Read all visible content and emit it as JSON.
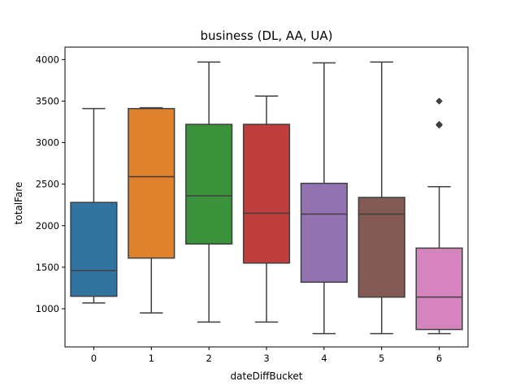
{
  "chart_data": {
    "type": "box",
    "title": "business (DL, AA, UA)",
    "xlabel": "dateDiffBucket",
    "ylabel": "totalFare",
    "ylim": [
      540,
      4150
    ],
    "yticks": [
      1000,
      1500,
      2000,
      2500,
      3000,
      3500,
      4000
    ],
    "categories": [
      "0",
      "1",
      "2",
      "3",
      "4",
      "5",
      "6"
    ],
    "colors": [
      "#3274a1",
      "#e1812c",
      "#3a923a",
      "#c03d3e",
      "#9372b2",
      "#845b53",
      "#d684bd"
    ],
    "boxes": [
      {
        "category": "0",
        "whisker_low": 1070,
        "q1": 1150,
        "median": 1460,
        "q3": 2280,
        "whisker_high": 3410,
        "outliers": []
      },
      {
        "category": "1",
        "whisker_low": 950,
        "q1": 1610,
        "median": 2590,
        "q3": 3410,
        "whisker_high": 3420,
        "outliers": []
      },
      {
        "category": "2",
        "whisker_low": 840,
        "q1": 1780,
        "median": 2360,
        "q3": 3220,
        "whisker_high": 3970,
        "outliers": []
      },
      {
        "category": "3",
        "whisker_low": 840,
        "q1": 1550,
        "median": 2150,
        "q3": 3220,
        "whisker_high": 3560,
        "outliers": []
      },
      {
        "category": "4",
        "whisker_low": 700,
        "q1": 1320,
        "median": 2140,
        "q3": 2510,
        "whisker_high": 3960,
        "outliers": []
      },
      {
        "category": "5",
        "whisker_low": 700,
        "q1": 1140,
        "median": 2140,
        "q3": 2340,
        "whisker_high": 3970,
        "outliers": []
      },
      {
        "category": "6",
        "whisker_low": 700,
        "q1": 750,
        "median": 1140,
        "q3": 1730,
        "whisker_high": 2470,
        "outliers": [
          3500,
          3220,
          3210
        ]
      }
    ]
  }
}
